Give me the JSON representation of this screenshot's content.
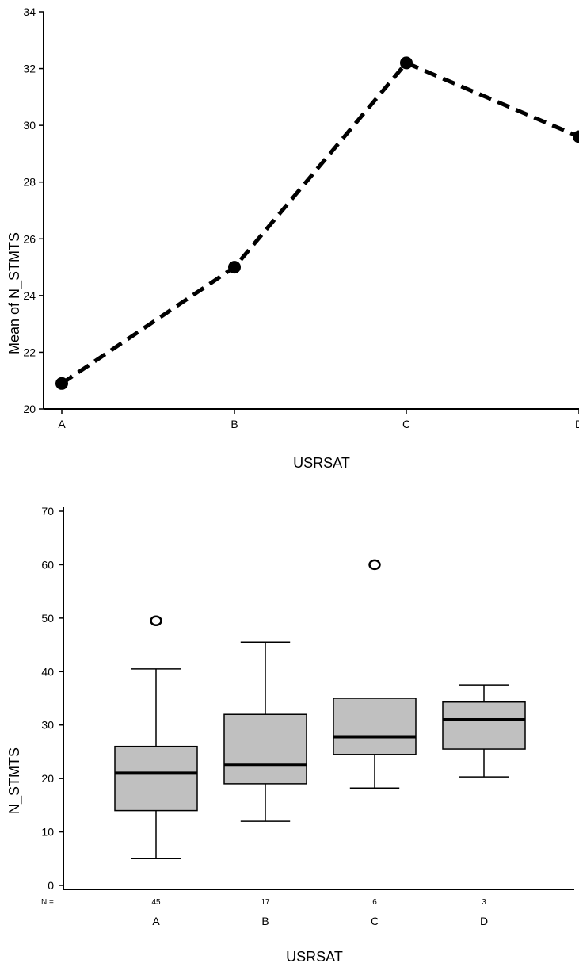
{
  "chart_data": [
    {
      "type": "line",
      "categories": [
        "A",
        "B",
        "C",
        "D"
      ],
      "series": [
        {
          "values": [
            20.9,
            25.0,
            32.2,
            29.6
          ]
        }
      ],
      "xlabel": "USRSAT",
      "ylabel": "Mean of N_STMTS",
      "ylim": [
        20,
        34
      ],
      "yticks": [
        20,
        22,
        24,
        26,
        28,
        30,
        32,
        34
      ],
      "grid": false,
      "line_style": "dashed",
      "marker": "filled-circle"
    },
    {
      "type": "box",
      "categories": [
        "A",
        "B",
        "C",
        "D"
      ],
      "n_label": "N =",
      "n": [
        "45",
        "17",
        "6",
        "3"
      ],
      "boxes": [
        {
          "min": 5,
          "q1": 14,
          "median": 21,
          "q3": 26,
          "max": 40.5,
          "outliers": [
            49.5
          ]
        },
        {
          "min": 12,
          "q1": 19,
          "median": 22.5,
          "q3": 32,
          "max": 45.5,
          "outliers": []
        },
        {
          "min": 18.2,
          "q1": 24.5,
          "median": 27.8,
          "q3": 35,
          "max": 35,
          "outliers": [
            60
          ]
        },
        {
          "min": 20.3,
          "q1": 25.5,
          "median": 31,
          "q3": 34.3,
          "max": 37.5,
          "outliers": []
        }
      ],
      "xlabel": "USRSAT",
      "ylabel": "N_STMTS",
      "ylim": [
        0,
        70
      ],
      "yticks": [
        0,
        10,
        20,
        30,
        40,
        50,
        60,
        70
      ],
      "grid": false,
      "box_color": "#c0c0c0",
      "outlier_marker": "O"
    }
  ]
}
